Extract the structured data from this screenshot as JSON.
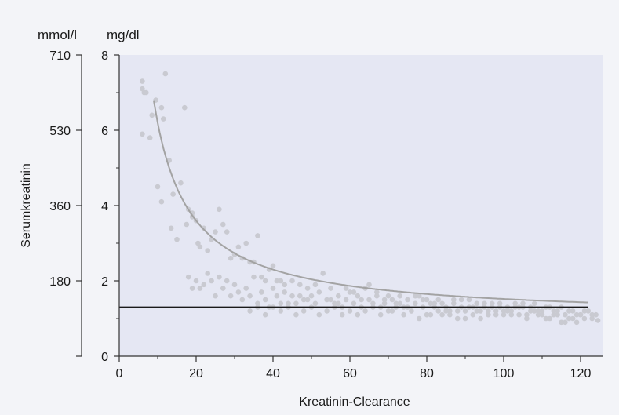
{
  "chart_data": {
    "type": "scatter",
    "title": "",
    "xlabel": "Kreatinin-Clearance",
    "ylabel": "Serumkreatinin",
    "unit_left": "mmol/l",
    "unit_right": "mg/dl",
    "xlim": [
      0,
      130
    ],
    "ylim": [
      0,
      8
    ],
    "x_ticks": [
      0,
      20,
      40,
      60,
      80,
      100,
      120
    ],
    "x_tick_labels": [
      "0",
      "20",
      "40",
      "60",
      "80",
      "100",
      "120"
    ],
    "y_ticks": [
      0,
      2,
      4,
      6,
      8
    ],
    "y_tick_labels": [
      "0",
      "2",
      "4",
      "6",
      "8"
    ],
    "y_ticks_mmol": [
      0,
      2,
      4,
      6,
      8
    ],
    "y_tick_labels_mmol": [
      "",
      "180",
      "360",
      "530",
      "710"
    ],
    "grid": false,
    "reference_line": {
      "y": 1.3,
      "x_range": [
        0,
        122
      ]
    },
    "curve": {
      "type": "hyperbolic",
      "formula": "y = 1 + 52/x",
      "x_range": [
        9,
        122
      ]
    },
    "colors": {
      "background": "#f3f4f8",
      "plot_area": "#e5e7f3",
      "points": "#c9cad1",
      "curve": "#a3a3a3",
      "reference_line": "#1a1a1a",
      "axis": "#333333"
    },
    "series": [
      {
        "values": [
          [
            6,
            7.3
          ],
          [
            6,
            7.1
          ],
          [
            6.5,
            7.0
          ],
          [
            7,
            7.0
          ],
          [
            6,
            5.9
          ],
          [
            8,
            5.8
          ],
          [
            8.5,
            6.4
          ],
          [
            9.5,
            6.8
          ],
          [
            11,
            6.6
          ],
          [
            11.5,
            6.3
          ],
          [
            12,
            7.5
          ],
          [
            13,
            5.2
          ],
          [
            10,
            4.5
          ],
          [
            11,
            4.1
          ],
          [
            14,
            4.3
          ],
          [
            13.5,
            3.4
          ],
          [
            15,
            3.1
          ],
          [
            16,
            4.6
          ],
          [
            17,
            6.6
          ],
          [
            17.5,
            3.5
          ],
          [
            18,
            3.9
          ],
          [
            19,
            3.7
          ],
          [
            19,
            3.8
          ],
          [
            20,
            3.6
          ],
          [
            20.5,
            3.0
          ],
          [
            21,
            2.9
          ],
          [
            22,
            3.4
          ],
          [
            23,
            2.8
          ],
          [
            24,
            3.1
          ],
          [
            25,
            3.3
          ],
          [
            26,
            3.9
          ],
          [
            27,
            3.5
          ],
          [
            28,
            3.3
          ],
          [
            29,
            2.6
          ],
          [
            30,
            2.7
          ],
          [
            31,
            2.9
          ],
          [
            32,
            2.6
          ],
          [
            33,
            3.0
          ],
          [
            34,
            2.5
          ],
          [
            35,
            2.5
          ],
          [
            36,
            3.2
          ],
          [
            37,
            2.1
          ],
          [
            38,
            2.0
          ],
          [
            39,
            2.3
          ],
          [
            40,
            2.4
          ],
          [
            41,
            2.0
          ],
          [
            42,
            2.0
          ],
          [
            18,
            2.1
          ],
          [
            19,
            1.8
          ],
          [
            20,
            2.0
          ],
          [
            21,
            1.8
          ],
          [
            22,
            1.9
          ],
          [
            23,
            2.2
          ],
          [
            24,
            2.0
          ],
          [
            25,
            1.6
          ],
          [
            26,
            2.1
          ],
          [
            27,
            1.8
          ],
          [
            28,
            2.0
          ],
          [
            29,
            1.6
          ],
          [
            30,
            1.9
          ],
          [
            31,
            1.7
          ],
          [
            32,
            1.5
          ],
          [
            33,
            1.8
          ],
          [
            34,
            1.6
          ],
          [
            35,
            2.1
          ],
          [
            36,
            1.4
          ],
          [
            37,
            1.7
          ],
          [
            38,
            1.5
          ],
          [
            39,
            1.3
          ],
          [
            40,
            1.8
          ],
          [
            41,
            1.6
          ],
          [
            42,
            1.4
          ],
          [
            43,
            1.7
          ],
          [
            44,
            1.4
          ],
          [
            45,
            1.6
          ],
          [
            46,
            1.4
          ],
          [
            47,
            1.9
          ],
          [
            48,
            1.5
          ],
          [
            49,
            1.8
          ],
          [
            50,
            1.6
          ],
          [
            51,
            1.4
          ],
          [
            52,
            1.7
          ],
          [
            53,
            2.2
          ],
          [
            54,
            1.5
          ],
          [
            55,
            1.8
          ],
          [
            56,
            1.4
          ],
          [
            57,
            1.6
          ],
          [
            58,
            1.3
          ],
          [
            59,
            1.5
          ],
          [
            60,
            1.7
          ],
          [
            61,
            1.4
          ],
          [
            62,
            1.6
          ],
          [
            63,
            1.3
          ],
          [
            64,
            1.8
          ],
          [
            65,
            1.5
          ],
          [
            66,
            1.4
          ],
          [
            67,
            1.7
          ],
          [
            68,
            1.3
          ],
          [
            69,
            1.5
          ],
          [
            70,
            1.6
          ],
          [
            71,
            1.2
          ],
          [
            72,
            1.4
          ],
          [
            73,
            1.6
          ],
          [
            74,
            1.3
          ],
          [
            75,
            1.5
          ],
          [
            76,
            1.2
          ],
          [
            77,
            1.4
          ],
          [
            78,
            1.6
          ],
          [
            79,
            1.3
          ],
          [
            80,
            1.5
          ],
          [
            81,
            1.1
          ],
          [
            82,
            1.4
          ],
          [
            83,
            1.2
          ],
          [
            84,
            1.4
          ],
          [
            85,
            1.3
          ],
          [
            86,
            1.1
          ],
          [
            87,
            1.4
          ],
          [
            88,
            1.2
          ],
          [
            89,
            1.5
          ],
          [
            90,
            1.0
          ],
          [
            91,
            1.3
          ],
          [
            92,
            1.1
          ],
          [
            93,
            1.4
          ],
          [
            94,
            1.2
          ],
          [
            95,
            1.3
          ],
          [
            96,
            1.1
          ],
          [
            97,
            1.4
          ],
          [
            98,
            1.2
          ],
          [
            99,
            1.3
          ],
          [
            100,
            1.1
          ],
          [
            101,
            1.3
          ],
          [
            102,
            1.2
          ],
          [
            103,
            1.4
          ],
          [
            104,
            1.1
          ],
          [
            105,
            1.3
          ],
          [
            106,
            1.0
          ],
          [
            107,
            1.2
          ],
          [
            108,
            1.4
          ],
          [
            109,
            1.1
          ],
          [
            110,
            1.2
          ],
          [
            111,
            1.0
          ],
          [
            112,
            1.3
          ],
          [
            113,
            1.1
          ],
          [
            114,
            1.2
          ],
          [
            115,
            0.9
          ],
          [
            116,
            1.1
          ],
          [
            117,
            1.0
          ],
          [
            118,
            1.2
          ],
          [
            119,
            0.9
          ],
          [
            120,
            1.1
          ],
          [
            121,
            1.0
          ],
          [
            122,
            1.2
          ],
          [
            123,
            1.0
          ],
          [
            124,
            1.1
          ],
          [
            124.5,
            0.95
          ],
          [
            34,
            1.2
          ],
          [
            36,
            1.3
          ],
          [
            38,
            1.1
          ],
          [
            40,
            1.3
          ],
          [
            42,
            1.2
          ],
          [
            44,
            1.3
          ],
          [
            46,
            1.1
          ],
          [
            48,
            1.2
          ],
          [
            50,
            1.3
          ],
          [
            52,
            1.1
          ],
          [
            54,
            1.2
          ],
          [
            56,
            1.3
          ],
          [
            58,
            1.1
          ],
          [
            60,
            1.2
          ],
          [
            62,
            1.1
          ],
          [
            64,
            1.2
          ],
          [
            66,
            1.3
          ],
          [
            68,
            1.1
          ],
          [
            70,
            1.2
          ],
          [
            72,
            1.3
          ],
          [
            74,
            1.1
          ],
          [
            76,
            1.2
          ],
          [
            78,
            1.0
          ],
          [
            80,
            1.1
          ],
          [
            82,
            1.3
          ],
          [
            84,
            1.1
          ],
          [
            86,
            1.2
          ],
          [
            88,
            1.0
          ],
          [
            90,
            1.2
          ],
          [
            92,
            1.3
          ],
          [
            94,
            1.0
          ],
          [
            96,
            1.2
          ],
          [
            98,
            1.1
          ],
          [
            100,
            1.2
          ],
          [
            102,
            1.1
          ],
          [
            104,
            1.3
          ],
          [
            106,
            1.1
          ],
          [
            108,
            1.2
          ],
          [
            110,
            1.1
          ],
          [
            112,
            1.0
          ],
          [
            114,
            1.1
          ],
          [
            116,
            0.9
          ],
          [
            118,
            1.0
          ],
          [
            120,
            1.1
          ],
          [
            43,
            1.9
          ],
          [
            45,
            2.0
          ],
          [
            47,
            1.6
          ],
          [
            49,
            1.5
          ],
          [
            51,
            1.9
          ],
          [
            55,
            1.5
          ],
          [
            57,
            1.4
          ],
          [
            59,
            1.8
          ],
          [
            61,
            1.7
          ],
          [
            63,
            1.5
          ],
          [
            65,
            1.9
          ],
          [
            67,
            1.6
          ],
          [
            69,
            1.4
          ],
          [
            71,
            1.5
          ],
          [
            73,
            1.4
          ],
          [
            75,
            1.3
          ],
          [
            77,
            1.6
          ],
          [
            79,
            1.5
          ],
          [
            81,
            1.4
          ],
          [
            83,
            1.5
          ],
          [
            85,
            1.2
          ],
          [
            87,
            1.5
          ],
          [
            89,
            1.3
          ],
          [
            91,
            1.5
          ],
          [
            93,
            1.2
          ],
          [
            95,
            1.4
          ],
          [
            97,
            1.3
          ],
          [
            99,
            1.4
          ],
          [
            101,
            1.2
          ],
          [
            103,
            1.3
          ],
          [
            105,
            1.4
          ],
          [
            107,
            1.3
          ],
          [
            109,
            1.2
          ],
          [
            111,
            1.3
          ],
          [
            113,
            1.2
          ],
          [
            115,
            1.3
          ],
          [
            117,
            1.2
          ],
          [
            119,
            1.1
          ],
          [
            121,
            1.2
          ],
          [
            123,
            1.1
          ]
        ]
      }
    ]
  }
}
